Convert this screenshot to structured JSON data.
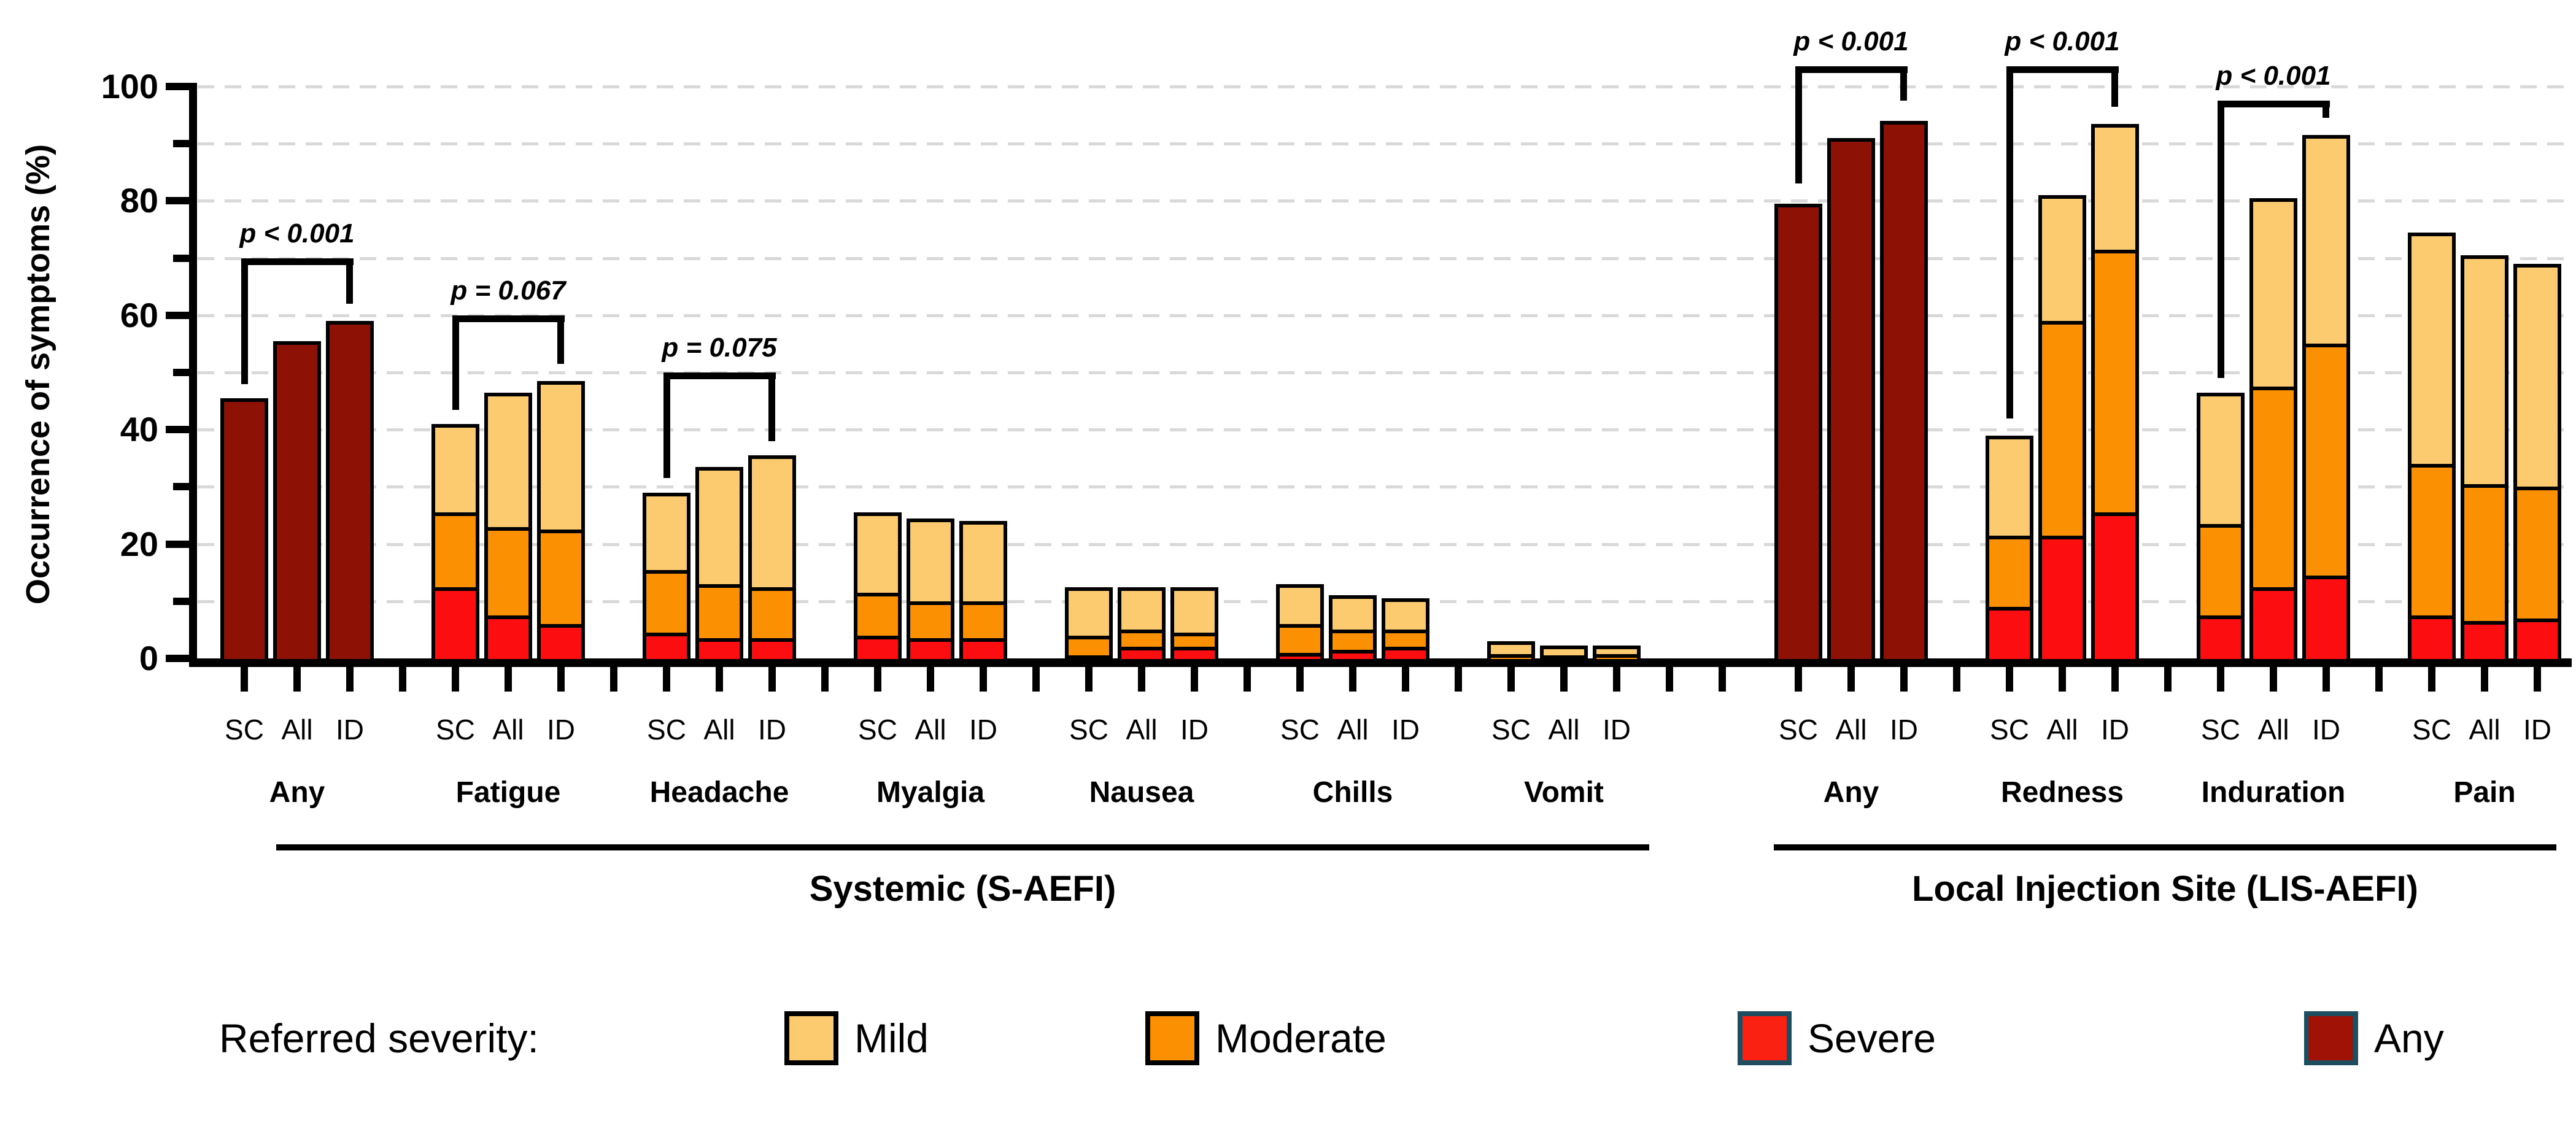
{
  "figure": {
    "background": "#FFFFFF",
    "ylabel": "Occurrence of symptoms (%)"
  },
  "chart_data": {
    "type": "bar",
    "stacked": true,
    "title": "",
    "xlabel": "",
    "ylabel": "Occurrence of symptoms (%)",
    "ylim": [
      0,
      100
    ],
    "yticks_major": [
      0,
      20,
      40,
      60,
      80,
      100
    ],
    "yticks_minor": [
      10,
      30,
      50,
      70,
      90
    ],
    "grid": "horizontal dashed gridline every 10 units",
    "legend_position": "bottom",
    "bar_labels": [
      "SC",
      "All",
      "ID"
    ],
    "legend": {
      "title": "Referred severity:",
      "entries": [
        {
          "label": "Mild",
          "color": "#FCCB70",
          "border": "#000000"
        },
        {
          "label": "Moderate",
          "color": "#FB9102",
          "border": "#000000"
        },
        {
          "label": "Severe",
          "color": "#FA2012",
          "border": "#1D4D5F"
        },
        {
          "label": "Any",
          "color": "#A11206",
          "border": "#1D4D5F"
        }
      ]
    },
    "sections": [
      {
        "label": "Systemic (S-AEFI)",
        "group_indices": [
          0,
          1,
          2,
          3,
          4,
          5,
          6
        ]
      },
      {
        "label": "Local Injection Site (LIS-AEFI)",
        "group_indices": [
          7,
          8,
          9,
          10
        ]
      }
    ],
    "groups": [
      {
        "name": "Any",
        "section": "Systemic (S-AEFI)",
        "style": "any",
        "bars": [
          {
            "label": "SC",
            "total": 45.5
          },
          {
            "label": "All",
            "total": 55.5
          },
          {
            "label": "ID",
            "total": 59
          }
        ]
      },
      {
        "name": "Fatigue",
        "section": "Systemic (S-AEFI)",
        "style": "stacked",
        "bars": [
          {
            "label": "SC",
            "severe": 12.5,
            "moderate": 13,
            "mild": 15.5,
            "total": 41
          },
          {
            "label": "All",
            "severe": 7.5,
            "moderate": 15.5,
            "mild": 23.5,
            "total": 46.5
          },
          {
            "label": "ID",
            "severe": 6,
            "moderate": 16.5,
            "mild": 26,
            "total": 48.5
          }
        ]
      },
      {
        "name": "Headache",
        "section": "Systemic (S-AEFI)",
        "style": "stacked",
        "bars": [
          {
            "label": "SC",
            "severe": 4.5,
            "moderate": 11,
            "mild": 13.5,
            "total": 29
          },
          {
            "label": "All",
            "severe": 3.5,
            "moderate": 9.5,
            "mild": 20.5,
            "total": 33.5
          },
          {
            "label": "ID",
            "severe": 3.5,
            "moderate": 9,
            "mild": 23,
            "total": 35.5
          }
        ]
      },
      {
        "name": "Myalgia",
        "section": "Systemic (S-AEFI)",
        "style": "stacked",
        "bars": [
          {
            "label": "SC",
            "severe": 4,
            "moderate": 7.5,
            "mild": 14,
            "total": 25.5
          },
          {
            "label": "All",
            "severe": 3.5,
            "moderate": 6.5,
            "mild": 14.5,
            "total": 24.5
          },
          {
            "label": "ID",
            "severe": 3.5,
            "moderate": 6.5,
            "mild": 14,
            "total": 24
          }
        ]
      },
      {
        "name": "Nausea",
        "section": "Systemic (S-AEFI)",
        "style": "stacked",
        "bars": [
          {
            "label": "SC",
            "severe": 0.5,
            "moderate": 3.5,
            "mild": 8.5,
            "total": 12.5
          },
          {
            "label": "All",
            "severe": 2,
            "moderate": 3,
            "mild": 7.5,
            "total": 12.5
          },
          {
            "label": "ID",
            "severe": 2,
            "moderate": 2.5,
            "mild": 8,
            "total": 12.5
          }
        ]
      },
      {
        "name": "Chills",
        "section": "Systemic (S-AEFI)",
        "style": "stacked",
        "bars": [
          {
            "label": "SC",
            "severe": 1,
            "moderate": 5,
            "mild": 7,
            "total": 13
          },
          {
            "label": "All",
            "severe": 1.5,
            "moderate": 3.5,
            "mild": 6,
            "total": 11
          },
          {
            "label": "ID",
            "severe": 2,
            "moderate": 3,
            "mild": 5.5,
            "total": 10.5
          }
        ]
      },
      {
        "name": "Vomit",
        "section": "Systemic (S-AEFI)",
        "style": "stacked",
        "bars": [
          {
            "label": "SC",
            "severe": 0,
            "moderate": 0.7,
            "mild": 2.3,
            "total": 3
          },
          {
            "label": "All",
            "severe": 0,
            "moderate": 0.5,
            "mild": 1.7,
            "total": 2.2
          },
          {
            "label": "ID",
            "severe": 0,
            "moderate": 0.7,
            "mild": 1.6,
            "total": 2.3
          }
        ]
      },
      {
        "name": "Any",
        "section": "Local Injection Site (LIS-AEFI)",
        "style": "any",
        "bars": [
          {
            "label": "SC",
            "total": 79.5
          },
          {
            "label": "All",
            "total": 91
          },
          {
            "label": "ID",
            "total": 94
          }
        ]
      },
      {
        "name": "Redness",
        "section": "Local Injection Site (LIS-AEFI)",
        "style": "stacked",
        "bars": [
          {
            "label": "SC",
            "severe": 9,
            "moderate": 12.5,
            "mild": 17.5,
            "total": 39
          },
          {
            "label": "All",
            "severe": 21.5,
            "moderate": 37.5,
            "mild": 22,
            "total": 81
          },
          {
            "label": "ID",
            "severe": 25.5,
            "moderate": 46,
            "mild": 22,
            "total": 93.5
          }
        ]
      },
      {
        "name": "Induration",
        "section": "Local Injection Site (LIS-AEFI)",
        "style": "stacked",
        "bars": [
          {
            "label": "SC",
            "severe": 7.5,
            "moderate": 16,
            "mild": 23,
            "total": 46.5
          },
          {
            "label": "All",
            "severe": 12.5,
            "moderate": 35,
            "mild": 33,
            "total": 80.5
          },
          {
            "label": "ID",
            "severe": 14.5,
            "moderate": 40.5,
            "mild": 36.5,
            "total": 91.5
          }
        ]
      },
      {
        "name": "Pain",
        "section": "Local Injection Site (LIS-AEFI)",
        "style": "stacked",
        "bars": [
          {
            "label": "SC",
            "severe": 7.5,
            "moderate": 26.5,
            "mild": 40.5,
            "total": 74.5
          },
          {
            "label": "All",
            "severe": 6.5,
            "moderate": 24,
            "mild": 40,
            "total": 70.5
          },
          {
            "label": "ID",
            "severe": 7,
            "moderate": 23,
            "mild": 39,
            "total": 69
          }
        ]
      }
    ],
    "significance": [
      {
        "group_index": 0,
        "label": "p < 0.001",
        "from_bar": "SC",
        "to_bar": "ID",
        "top": 70,
        "left_end": 48,
        "right_end": 62
      },
      {
        "group_index": 1,
        "label": "p = 0.067",
        "from_bar": "SC",
        "to_bar": "ID",
        "top": 60,
        "left_end": 43.5,
        "right_end": 51.5
      },
      {
        "group_index": 2,
        "label": "p = 0.075",
        "from_bar": "SC",
        "to_bar": "ID",
        "top": 50,
        "left_end": 31.5,
        "right_end": 38
      },
      {
        "group_index": 7,
        "label": "p < 0.001",
        "from_bar": "SC",
        "to_bar": "ID",
        "top": 103.5,
        "left_end": 83,
        "right_end": 97.5
      },
      {
        "group_index": 8,
        "label": "p < 0.001",
        "from_bar": "SC",
        "to_bar": "ID",
        "top": 103.5,
        "left_end": 42,
        "right_end": 96.5
      },
      {
        "group_index": 9,
        "label": "p < 0.001",
        "from_bar": "SC",
        "to_bar": "ID",
        "top": 97.5,
        "left_end": 49,
        "right_end": 94.5
      }
    ],
    "colors": {
      "mild": "#FCCB70",
      "moderate": "#FB9102",
      "severe": "#FB0D10",
      "any": "#8E1105",
      "bar_border": "#000000",
      "axis": "#000000",
      "grid": "#D9D9D9"
    }
  }
}
